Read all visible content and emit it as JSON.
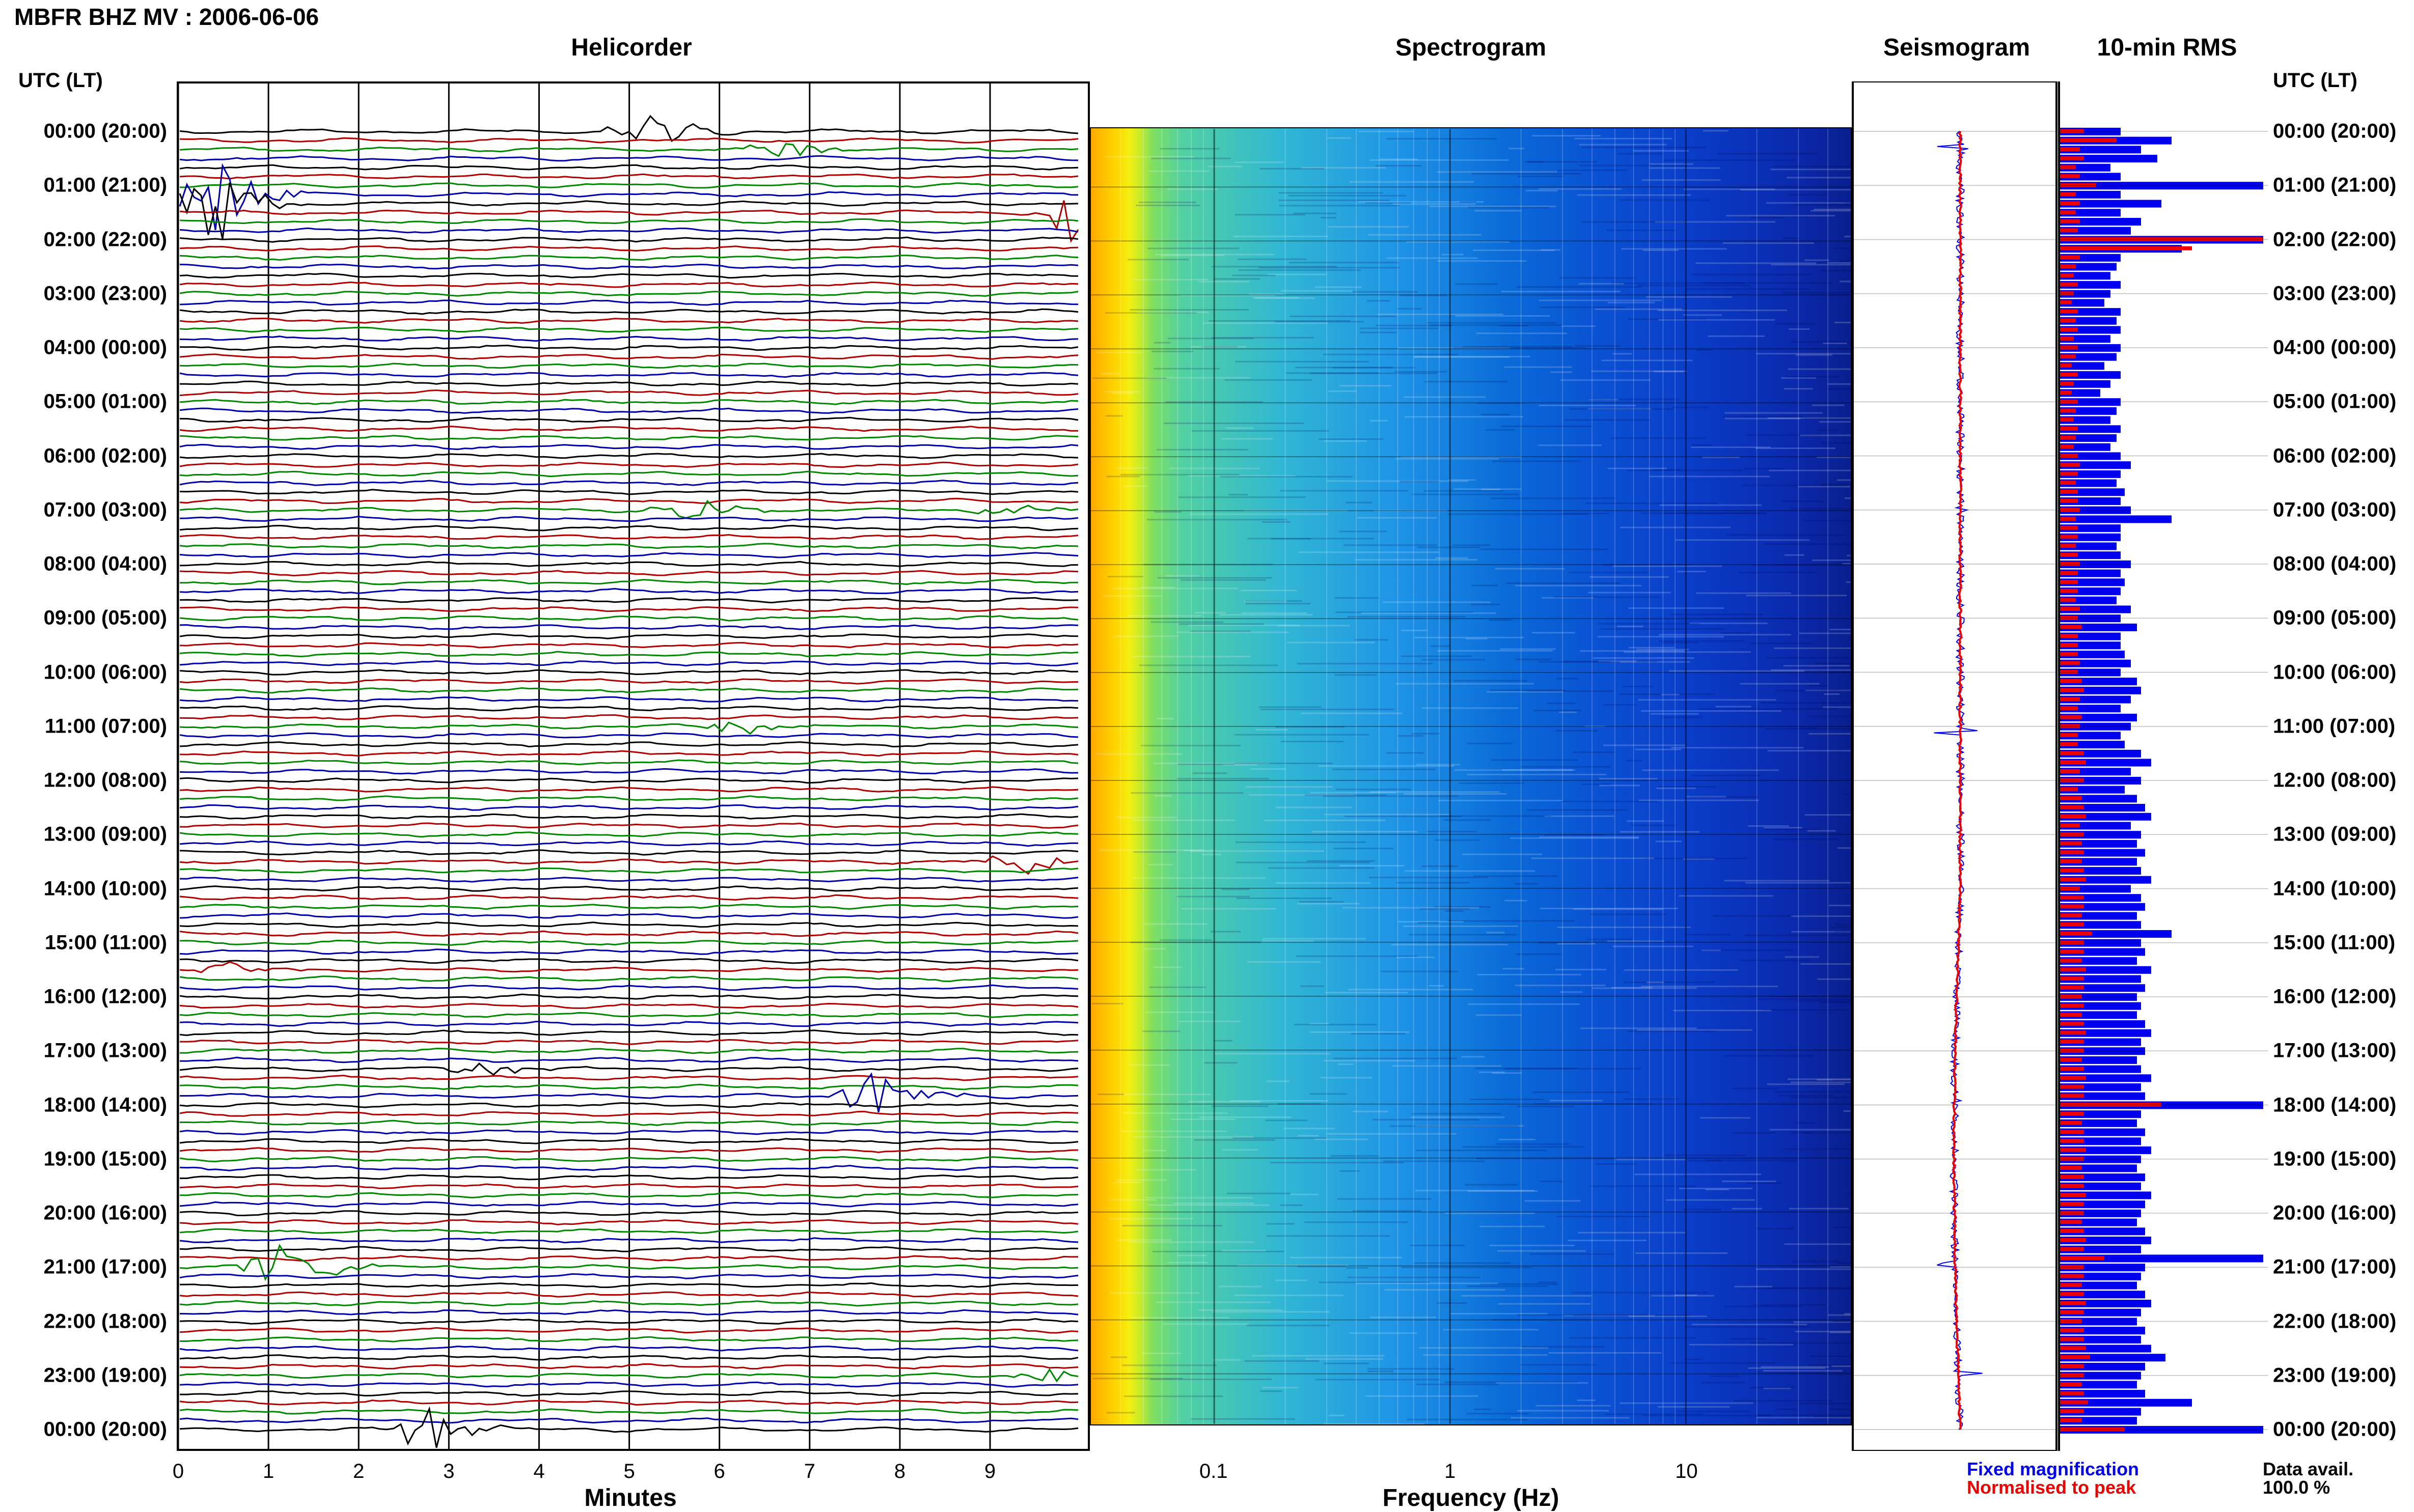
{
  "title": "MBFR BHZ MV : 2006-06-06",
  "panels": {
    "helicorder": "Helicorder",
    "spectrogram": "Spectrogram",
    "seismogram": "Seismogram",
    "rms": "10-min RMS"
  },
  "time_axis_header": "UTC (LT)",
  "time_labels": [
    "00:00 (20:00)",
    "01:00 (21:00)",
    "02:00 (22:00)",
    "03:00 (23:00)",
    "04:00 (00:00)",
    "05:00 (01:00)",
    "06:00 (02:00)",
    "07:00 (03:00)",
    "08:00 (04:00)",
    "09:00 (05:00)",
    "10:00 (06:00)",
    "11:00 (07:00)",
    "12:00 (08:00)",
    "13:00 (09:00)",
    "14:00 (10:00)",
    "15:00 (11:00)",
    "16:00 (12:00)",
    "17:00 (13:00)",
    "18:00 (14:00)",
    "19:00 (15:00)",
    "20:00 (16:00)",
    "21:00 (17:00)",
    "22:00 (18:00)",
    "23:00 (19:00)",
    "00:00 (20:00)"
  ],
  "helicorder_xticks": [
    "0",
    "1",
    "2",
    "3",
    "4",
    "5",
    "6",
    "7",
    "8",
    "9"
  ],
  "helicorder_xlabel": "Minutes",
  "spectrogram_xticks": [
    "0.1",
    "1",
    "10"
  ],
  "spectrogram_xlabel": "Frequency (Hz)",
  "legend": {
    "fixed": "Fixed magnification",
    "normalised": "Normalised to peak",
    "avail_label": "Data avail.",
    "avail_value": "100.0 %"
  },
  "colors": {
    "trace_cycle": [
      "#000000",
      "#b00000",
      "#008800",
      "#0000aa"
    ],
    "fixed": "#0000ee",
    "normalised": "#ee0000"
  },
  "chart_data": [
    {
      "type": "line",
      "name": "Helicorder",
      "x_unit": "minutes",
      "xlim": [
        0,
        10
      ],
      "rows": 144,
      "row_minutes": 10,
      "events": [
        {
          "hour": 0.05,
          "minute": 5.0,
          "amp": 3.0
        },
        {
          "hour": 0.3,
          "minute": 6.5,
          "amp": 1.0
        },
        {
          "hour": 1.25,
          "minute": 0.2,
          "amp": 5.0
        },
        {
          "hour": 1.5,
          "minute": 9.8,
          "amp": 5.0
        },
        {
          "hour": 7.0,
          "minute": 5.5,
          "amp": 1.2
        },
        {
          "hour": 7.0,
          "minute": 9.0,
          "amp": 0.8
        },
        {
          "hour": 11.0,
          "minute": 6.0,
          "amp": 1.0
        },
        {
          "hour": 13.45,
          "minute": 9.2,
          "amp": 1.3
        },
        {
          "hour": 15.55,
          "minute": 0.4,
          "amp": 0.9
        },
        {
          "hour": 17.4,
          "minute": 3.2,
          "amp": 0.8
        },
        {
          "hour": 17.8,
          "minute": 7.5,
          "amp": 3.0
        },
        {
          "hour": 20.95,
          "minute": 1.0,
          "amp": 3.0
        },
        {
          "hour": 23.0,
          "minute": 9.5,
          "amp": 0.9
        },
        {
          "hour": 24.0,
          "minute": 2.6,
          "amp": 3.0
        }
      ]
    },
    {
      "type": "heatmap",
      "name": "Spectrogram",
      "x_scale": "log",
      "xlim_hz": [
        0.03,
        50
      ],
      "x_ticks": [
        0.1,
        1,
        10
      ],
      "hours": 24
    },
    {
      "type": "line",
      "name": "Seismogram",
      "series": [
        {
          "name": "Fixed magnification",
          "color": "#0000ee"
        },
        {
          "name": "Normalised to peak",
          "color": "#ee0000"
        }
      ]
    },
    {
      "type": "bar",
      "name": "10-min RMS",
      "orientation": "horizontal",
      "bins": 145,
      "fixed_values": [
        0.3,
        0.55,
        0.4,
        0.48,
        0.25,
        0.3,
        1.0,
        0.3,
        0.5,
        0.3,
        0.4,
        0.35,
        1.0,
        0.6,
        0.3,
        0.28,
        0.25,
        0.3,
        0.25,
        0.22,
        0.3,
        0.28,
        0.3,
        0.25,
        0.3,
        0.28,
        0.22,
        0.3,
        0.25,
        0.2,
        0.3,
        0.28,
        0.25,
        0.3,
        0.28,
        0.25,
        0.3,
        0.35,
        0.3,
        0.28,
        0.32,
        0.3,
        0.35,
        0.55,
        0.3,
        0.3,
        0.28,
        0.3,
        0.35,
        0.3,
        0.32,
        0.3,
        0.28,
        0.35,
        0.3,
        0.38,
        0.3,
        0.3,
        0.32,
        0.35,
        0.3,
        0.38,
        0.4,
        0.35,
        0.3,
        0.38,
        0.35,
        0.3,
        0.32,
        0.4,
        0.45,
        0.35,
        0.4,
        0.32,
        0.38,
        0.42,
        0.45,
        0.35,
        0.4,
        0.38,
        0.42,
        0.38,
        0.4,
        0.45,
        0.35,
        0.4,
        0.42,
        0.38,
        0.4,
        0.55,
        0.4,
        0.42,
        0.38,
        0.45,
        0.4,
        0.42,
        0.38,
        0.4,
        0.38,
        0.42,
        0.45,
        0.4,
        0.42,
        0.38,
        0.4,
        0.45,
        0.4,
        0.42,
        1.0,
        0.4,
        0.38,
        0.42,
        0.4,
        0.45,
        0.4,
        0.38,
        0.42,
        0.4,
        0.45,
        0.42,
        0.4,
        0.38,
        0.42,
        0.45,
        0.4,
        1.0,
        0.42,
        0.4,
        0.38,
        0.42,
        0.45,
        0.4,
        0.38,
        0.42,
        0.4,
        0.45,
        0.52,
        0.42,
        0.4,
        0.38,
        0.42,
        0.65,
        0.4,
        0.38,
        1.0
      ],
      "normalised_values": [
        0.12,
        0.28,
        0.1,
        0.12,
        0.08,
        0.1,
        0.18,
        0.08,
        0.1,
        0.08,
        0.1,
        0.09,
        1.0,
        0.65,
        0.1,
        0.08,
        0.07,
        0.09,
        0.07,
        0.06,
        0.09,
        0.08,
        0.09,
        0.07,
        0.09,
        0.08,
        0.06,
        0.09,
        0.07,
        0.06,
        0.09,
        0.08,
        0.07,
        0.09,
        0.08,
        0.07,
        0.09,
        0.1,
        0.09,
        0.08,
        0.09,
        0.09,
        0.1,
        0.08,
        0.09,
        0.09,
        0.08,
        0.09,
        0.1,
        0.09,
        0.09,
        0.09,
        0.08,
        0.1,
        0.09,
        0.11,
        0.09,
        0.09,
        0.09,
        0.1,
        0.09,
        0.11,
        0.12,
        0.1,
        0.09,
        0.11,
        0.1,
        0.09,
        0.09,
        0.12,
        0.13,
        0.1,
        0.12,
        0.09,
        0.11,
        0.12,
        0.13,
        0.1,
        0.12,
        0.11,
        0.12,
        0.11,
        0.12,
        0.13,
        0.1,
        0.12,
        0.12,
        0.11,
        0.12,
        0.16,
        0.12,
        0.12,
        0.11,
        0.13,
        0.12,
        0.12,
        0.11,
        0.12,
        0.11,
        0.12,
        0.13,
        0.12,
        0.12,
        0.11,
        0.12,
        0.13,
        0.12,
        0.12,
        0.5,
        0.12,
        0.11,
        0.12,
        0.12,
        0.13,
        0.12,
        0.11,
        0.12,
        0.12,
        0.13,
        0.12,
        0.12,
        0.11,
        0.12,
        0.13,
        0.12,
        0.22,
        0.12,
        0.12,
        0.11,
        0.12,
        0.13,
        0.12,
        0.11,
        0.12,
        0.12,
        0.13,
        0.15,
        0.12,
        0.12,
        0.11,
        0.12,
        0.14,
        0.12,
        0.11,
        0.32
      ]
    }
  ]
}
